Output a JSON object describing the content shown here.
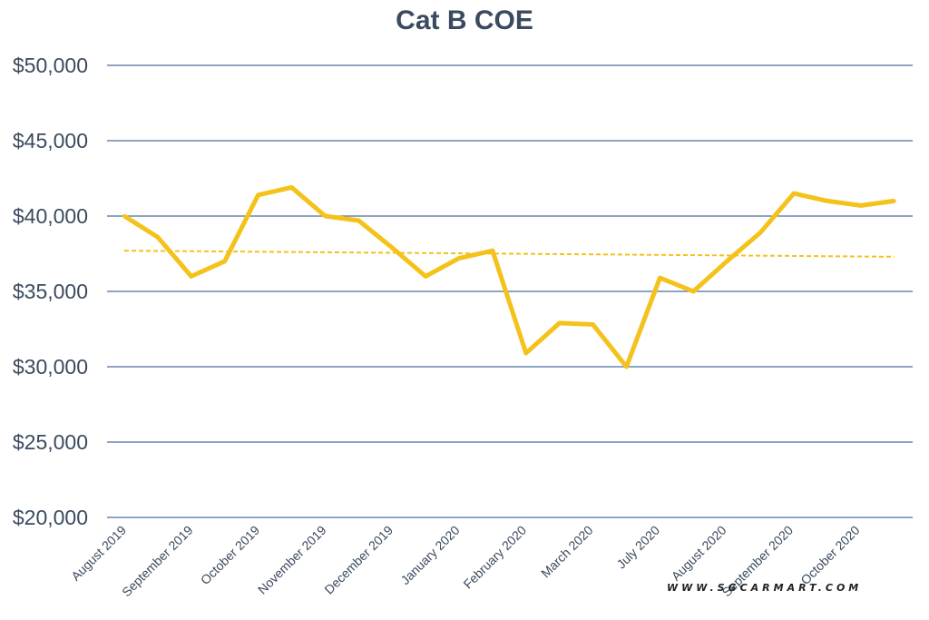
{
  "chart_data": {
    "type": "line",
    "title": "Cat B COE",
    "xlabel": "",
    "ylabel": "",
    "ylim": [
      20000,
      50000
    ],
    "yticks": [
      20000,
      25000,
      30000,
      35000,
      40000,
      45000,
      50000
    ],
    "ytick_labels": [
      "$20,000",
      "$25,000",
      "$30,000",
      "$35,000",
      "$40,000",
      "$45,000",
      "$50,000"
    ],
    "x_tick_labels": [
      "August 2019",
      "September 2019",
      "October 2019",
      "November 2019",
      "December 2019",
      "January 2020",
      "February 2020",
      "March 2020",
      "July 2020",
      "August 2020",
      "September 2020",
      "October 2020"
    ],
    "grid": true,
    "series": [
      {
        "color": "#f4c21b",
        "values": [
          40000,
          38600,
          36000,
          37000,
          41400,
          41900,
          40000,
          39700,
          37900,
          36000,
          37200,
          37700,
          30900,
          32900,
          32800,
          30000,
          35900,
          35000,
          37000,
          38900,
          41500,
          41000,
          40700,
          41000
        ]
      }
    ],
    "trendline": {
      "color": "#f4c21b",
      "style": "dashed",
      "start": 37700,
      "end": 37300
    }
  },
  "watermark": "WWW.SGCARMART.COM",
  "colors": {
    "line": "#f4c21b",
    "grid": "#4a6f9c",
    "text": "#3b4a5e"
  }
}
